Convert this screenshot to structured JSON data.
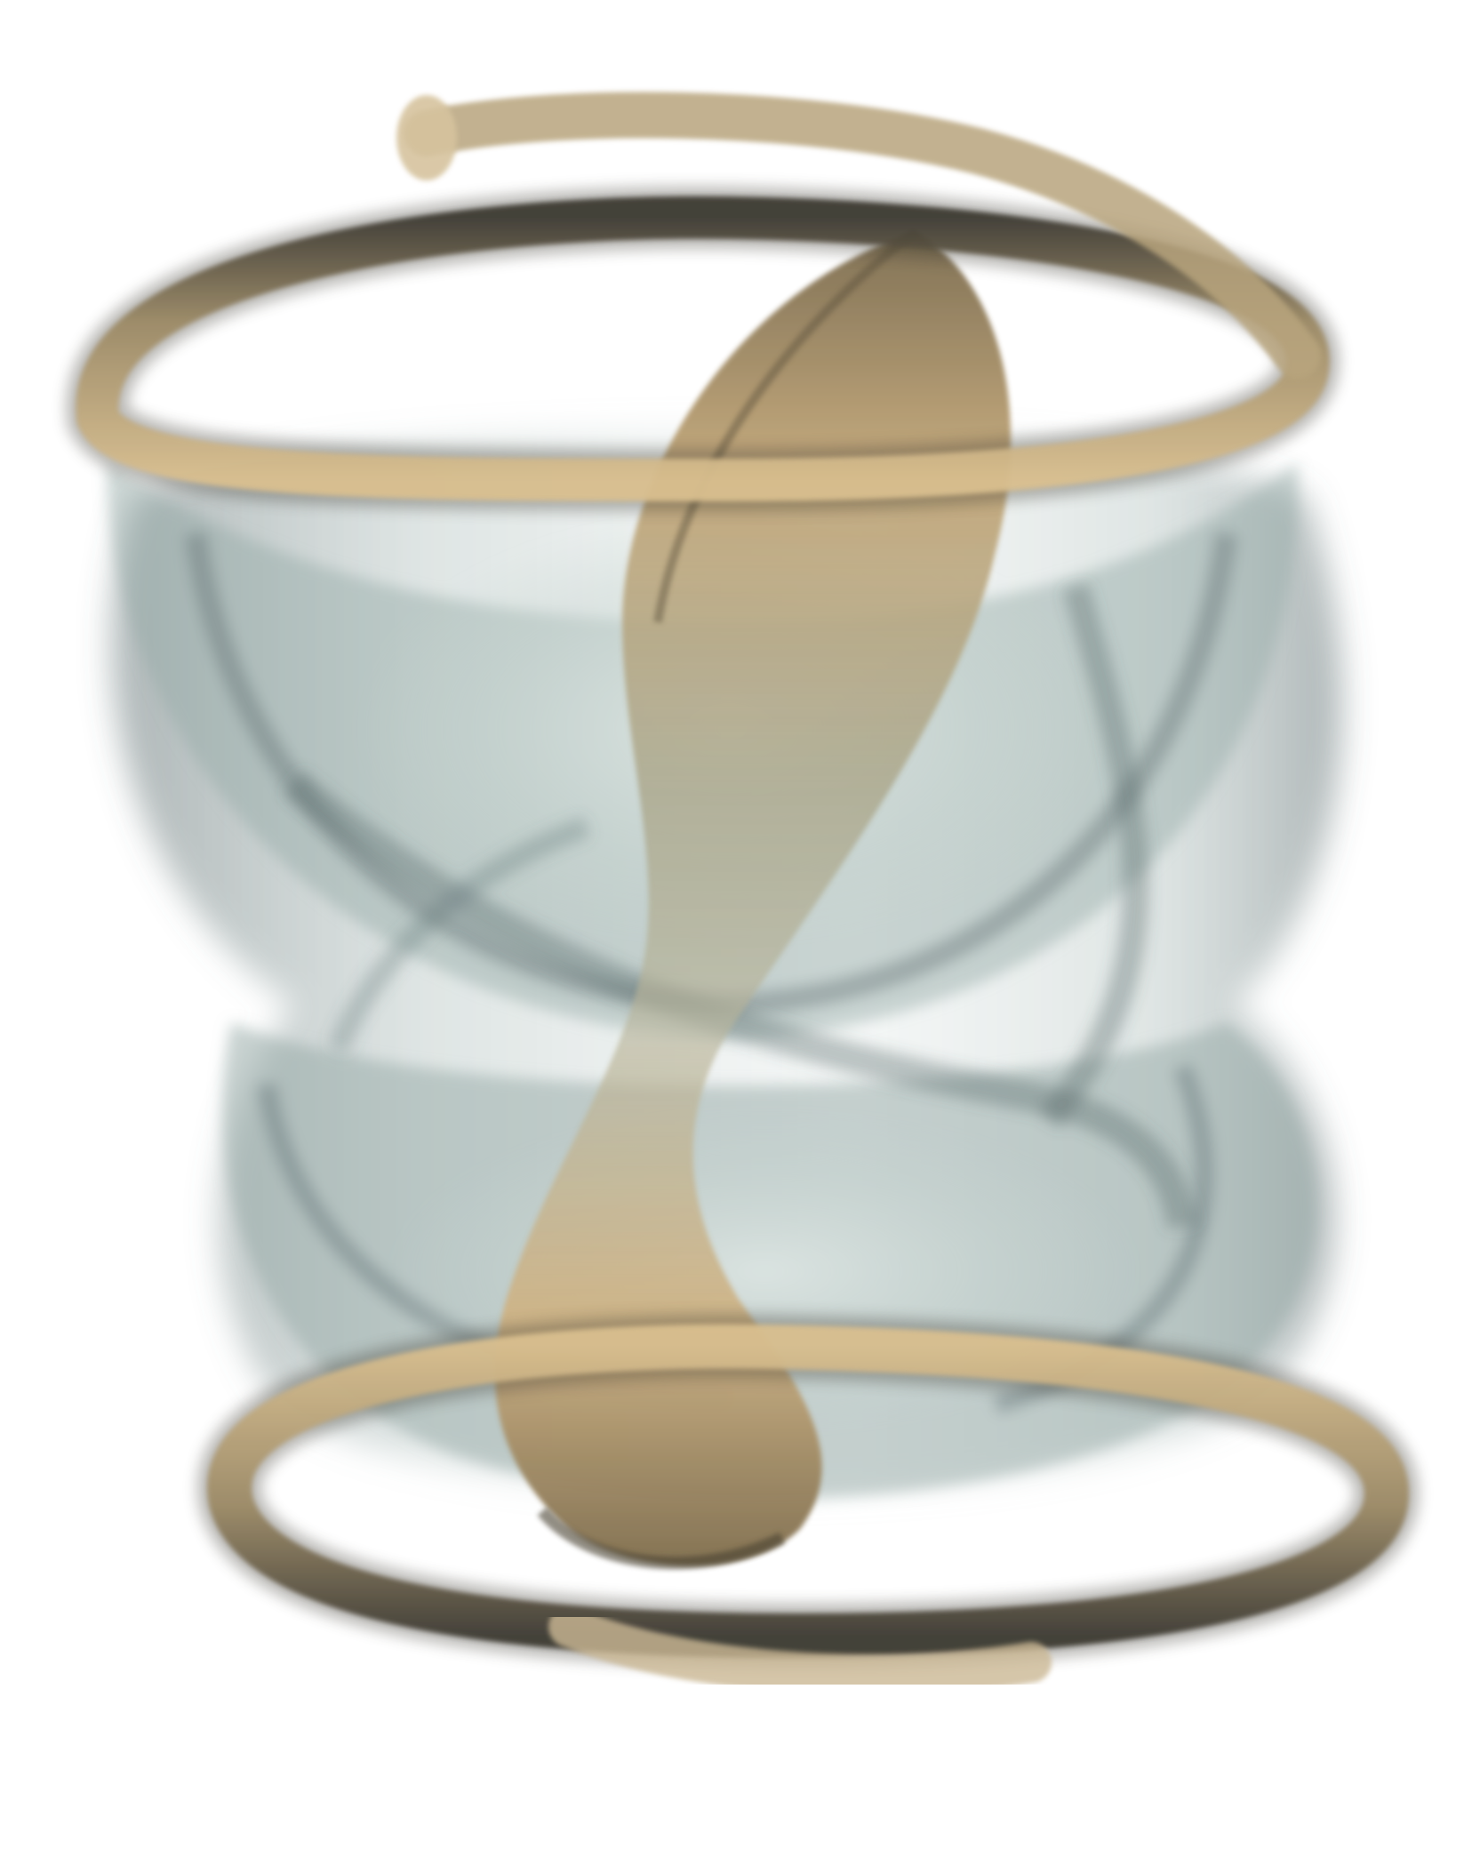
{
  "scene": {
    "subject": "volume-rendered-vortex",
    "palette": {
      "background": "#ffffff",
      "tan_light": "#d9bf8f",
      "tan_mid": "#b79f74",
      "tan_dark": "#6f624a",
      "tube_shadow": "#3e3b33",
      "teal_light": "#c9d6d2",
      "teal_mid": "#93a8a5",
      "teal_dark": "#4f6163"
    }
  }
}
